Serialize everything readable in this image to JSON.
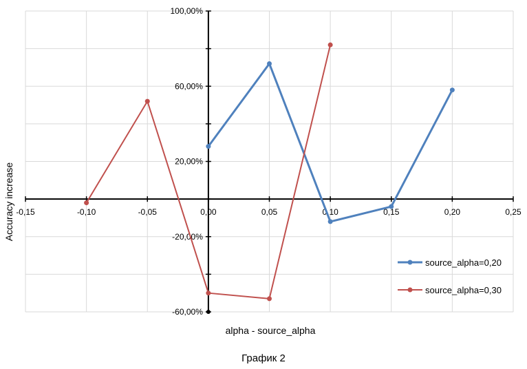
{
  "chart_data": {
    "type": "scatter",
    "xlabel": "alpha - source_alpha",
    "ylabel": "Accuracy increase",
    "xlim": [
      -0.15,
      0.25
    ],
    "ylim": [
      -0.6,
      1.0
    ],
    "x_ticks": [
      -0.15,
      -0.1,
      -0.05,
      0.0,
      0.05,
      0.1,
      0.15,
      0.2,
      0.25
    ],
    "x_tick_labels": [
      "-0,15",
      "-0,10",
      "-0,05",
      "0,00",
      "0,05",
      "0,10",
      "0,15",
      "0,20",
      "0,25"
    ],
    "y_ticks": [
      1.0,
      0.6,
      0.2,
      -0.2,
      -0.6
    ],
    "y_tick_labels": [
      "100,00%",
      "60,00%",
      "20,00%",
      "-20,00%",
      "-60,00%"
    ],
    "grid": true,
    "legend_position": "right",
    "series": [
      {
        "name": "source_alpha=0,20",
        "color": "#4f81bd",
        "x": [
          0.0,
          0.05,
          0.1,
          0.15,
          0.2
        ],
        "y": [
          0.28,
          0.72,
          -0.12,
          -0.04,
          0.58
        ]
      },
      {
        "name": "source_alpha=0,30",
        "color": "#c0504d",
        "x": [
          -0.1,
          -0.05,
          0.0,
          0.05,
          0.1
        ],
        "y": [
          -0.02,
          0.52,
          -0.5,
          -0.53,
          0.82
        ]
      }
    ]
  },
  "caption": "График 2"
}
